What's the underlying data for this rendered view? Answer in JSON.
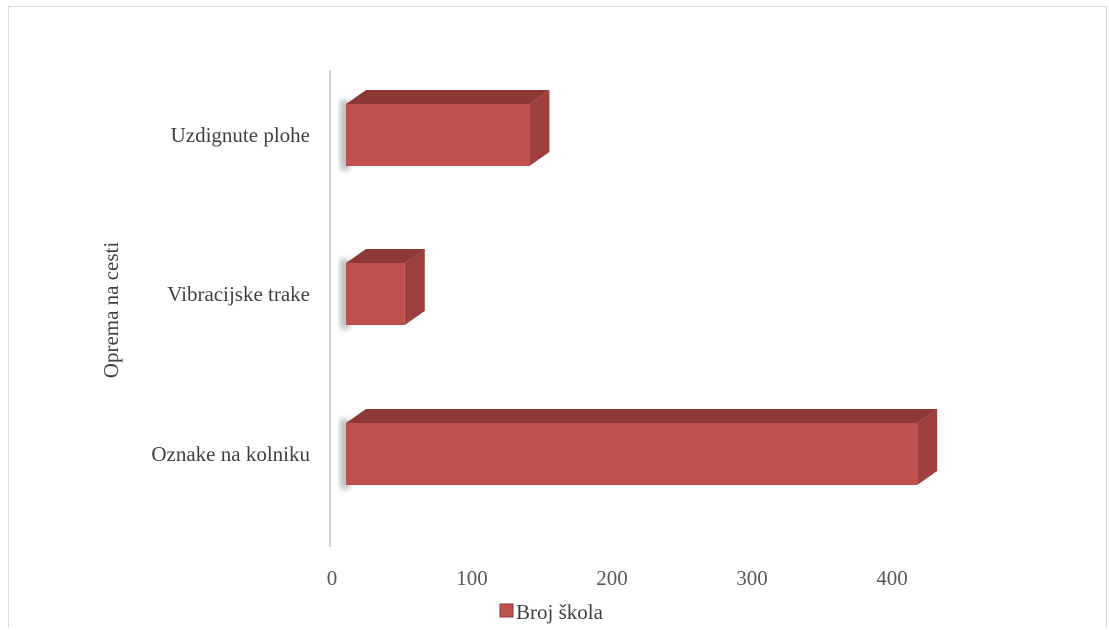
{
  "chart_data": {
    "type": "bar",
    "orientation": "horizontal",
    "style": "3d-clustered-bar",
    "categories": [
      "Oznake na kolniku",
      "Vibracijske trake",
      "Uzdignute plohe"
    ],
    "series": [
      {
        "name": "Broj škola",
        "values": [
          408,
          42,
          131
        ],
        "color": "#c0504d"
      }
    ],
    "title": "",
    "xlabel": "",
    "ylabel": "Oprema na cesti",
    "xlim": [
      0,
      400
    ],
    "x_ticks": [
      0,
      100,
      200,
      300,
      400
    ],
    "grid": false,
    "legend": {
      "position": "bottom",
      "entries": [
        "Broj škola"
      ]
    }
  },
  "colors": {
    "bar_front": "#c0504d",
    "bar_top": "#8c3836",
    "bar_side": "#9e403d",
    "axis_line": "#d0d0d0"
  }
}
